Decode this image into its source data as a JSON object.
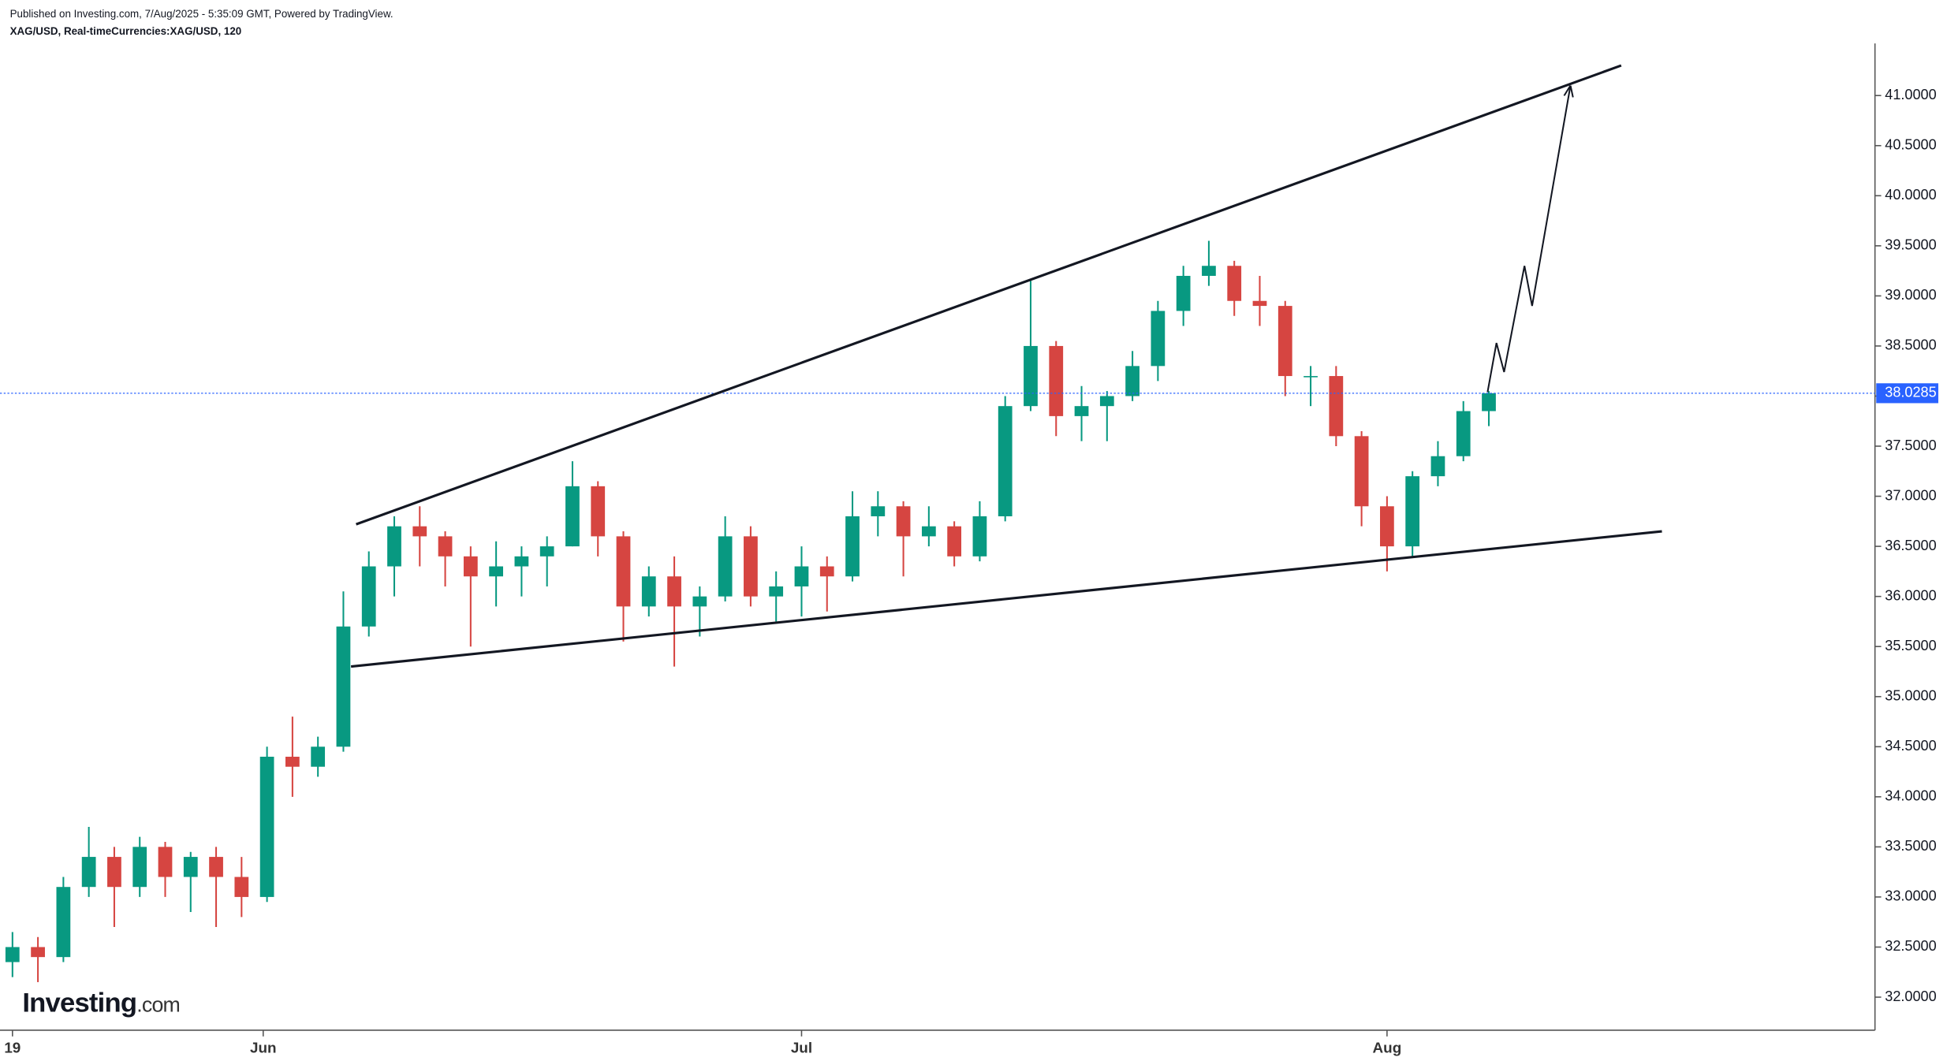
{
  "header": {
    "published": "Published on Investing.com, 7/Aug/2025 - 5:35:09 GMT, Powered by TradingView.",
    "symbol": "XAG/USD, Real-timeCurrencies:XAG/USD, 120"
  },
  "logo": {
    "brand": "Investing",
    "suffix": ".com"
  },
  "chart_data": {
    "type": "candlestick",
    "x": [
      0,
      1,
      2,
      3,
      4,
      5,
      6,
      7,
      8,
      9,
      10,
      11,
      12,
      13,
      14,
      15,
      16,
      17,
      18,
      19,
      20,
      21,
      22,
      23,
      24,
      25,
      26,
      27,
      28,
      29,
      30,
      31,
      32,
      33,
      34,
      35,
      36,
      37,
      38,
      39,
      40,
      41,
      42,
      43,
      44,
      45,
      46,
      47,
      48,
      49,
      50,
      51,
      52,
      53,
      54,
      55,
      56,
      57,
      58
    ],
    "open": [
      32.35,
      32.5,
      32.4,
      33.1,
      33.4,
      33.1,
      33.5,
      33.2,
      33.4,
      33.2,
      33.0,
      34.4,
      34.3,
      34.5,
      35.7,
      36.3,
      36.7,
      36.6,
      36.4,
      36.2,
      36.3,
      36.4,
      36.5,
      37.1,
      36.6,
      35.9,
      36.2,
      35.9,
      36.0,
      36.6,
      36.0,
      36.1,
      36.3,
      36.2,
      36.8,
      36.9,
      36.6,
      36.7,
      36.4,
      36.8,
      37.9,
      38.5,
      37.8,
      37.9,
      38.0,
      38.3,
      38.85,
      39.2,
      39.3,
      38.95,
      38.9,
      38.2,
      38.2,
      37.6,
      36.9,
      36.5,
      37.2,
      37.4,
      37.85
    ],
    "high": [
      32.65,
      32.6,
      33.2,
      33.7,
      33.5,
      33.6,
      33.55,
      33.45,
      33.5,
      33.4,
      34.5,
      34.8,
      34.6,
      36.05,
      36.45,
      36.8,
      36.9,
      36.65,
      36.5,
      36.55,
      36.5,
      36.6,
      37.35,
      37.15,
      36.65,
      36.3,
      36.4,
      36.1,
      36.8,
      36.7,
      36.25,
      36.5,
      36.4,
      37.05,
      37.05,
      36.95,
      36.9,
      36.75,
      36.95,
      38.0,
      39.15,
      38.55,
      38.1,
      38.05,
      38.45,
      38.95,
      39.3,
      39.55,
      39.35,
      39.2,
      38.95,
      38.3,
      38.3,
      37.65,
      37.0,
      37.25,
      37.55,
      37.95,
      38.05
    ],
    "low": [
      32.2,
      32.15,
      32.35,
      33.0,
      32.7,
      33.0,
      33.0,
      32.85,
      32.7,
      32.8,
      32.95,
      34.0,
      34.2,
      34.45,
      35.6,
      36.0,
      36.3,
      36.1,
      35.5,
      35.9,
      36.0,
      36.1,
      36.5,
      36.4,
      35.55,
      35.8,
      35.3,
      35.6,
      35.95,
      35.9,
      35.75,
      35.8,
      35.85,
      36.15,
      36.6,
      36.2,
      36.5,
      36.3,
      36.35,
      36.75,
      37.85,
      37.6,
      37.55,
      37.55,
      37.95,
      38.15,
      38.7,
      39.1,
      38.8,
      38.7,
      38.0,
      37.9,
      37.5,
      36.7,
      36.25,
      36.4,
      37.1,
      37.35,
      37.7
    ],
    "close": [
      32.5,
      32.4,
      33.1,
      33.4,
      33.1,
      33.5,
      33.2,
      33.4,
      33.2,
      33.0,
      34.4,
      34.3,
      34.5,
      35.7,
      36.3,
      36.7,
      36.6,
      36.4,
      36.2,
      36.3,
      36.4,
      36.5,
      37.1,
      36.6,
      35.9,
      36.2,
      35.9,
      36.0,
      36.6,
      36.0,
      36.1,
      36.3,
      36.2,
      36.8,
      36.9,
      36.6,
      36.7,
      36.4,
      36.8,
      37.9,
      38.5,
      37.8,
      37.9,
      38.0,
      38.3,
      38.85,
      39.2,
      39.3,
      38.95,
      38.9,
      38.2,
      38.2,
      37.6,
      36.9,
      36.5,
      37.2,
      37.4,
      37.85,
      38.0285
    ],
    "up_color": "#089981",
    "down_color": "#d64541",
    "last_price": 38.0285,
    "last_price_color": "#2962ff",
    "xlim": [
      -0.49,
      73.17
    ],
    "xticks": [
      {
        "value": 0,
        "label": "19"
      },
      {
        "value": 9.85,
        "label": "Jun"
      },
      {
        "value": 31.0,
        "label": "Jul"
      },
      {
        "value": 54.0,
        "label": "Aug"
      }
    ],
    "ylim": [
      31.67,
      41.52
    ],
    "yticks": [
      {
        "value": 32,
        "label": "32.0000"
      },
      {
        "value": 32.5,
        "label": "32.5000"
      },
      {
        "value": 33,
        "label": "33.0000"
      },
      {
        "value": 33.5,
        "label": "33.5000"
      },
      {
        "value": 34,
        "label": "34.0000"
      },
      {
        "value": 34.5,
        "label": "34.5000"
      },
      {
        "value": 35,
        "label": "35.0000"
      },
      {
        "value": 35.5,
        "label": "35.5000"
      },
      {
        "value": 36,
        "label": "36.0000"
      },
      {
        "value": 36.5,
        "label": "36.5000"
      },
      {
        "value": 37,
        "label": "37.0000"
      },
      {
        "value": 37.5,
        "label": "37.5000"
      },
      {
        "value": 38,
        "label": "38.0000"
      },
      {
        "value": 38.5,
        "label": "38.5000"
      },
      {
        "value": 39,
        "label": "39.0000"
      },
      {
        "value": 39.5,
        "label": "39.5000"
      },
      {
        "value": 40,
        "label": "40.0000"
      },
      {
        "value": 40.5,
        "label": "40.5000"
      },
      {
        "value": 41,
        "label": "41.0000"
      }
    ],
    "lines": [
      {
        "x": [
          13.5,
          63.2
        ],
        "y": [
          36.72,
          41.3
        ],
        "arrow": false
      },
      {
        "x": [
          13.3,
          64.8
        ],
        "y": [
          35.3,
          36.65
        ],
        "arrow": false
      },
      {
        "x": [
          57.95,
          58.3,
          58.6,
          59.4,
          59.7,
          61.2
        ],
        "y": [
          38.04,
          38.53,
          38.24,
          39.3,
          38.9,
          41.09
        ],
        "arrow": true
      }
    ]
  }
}
